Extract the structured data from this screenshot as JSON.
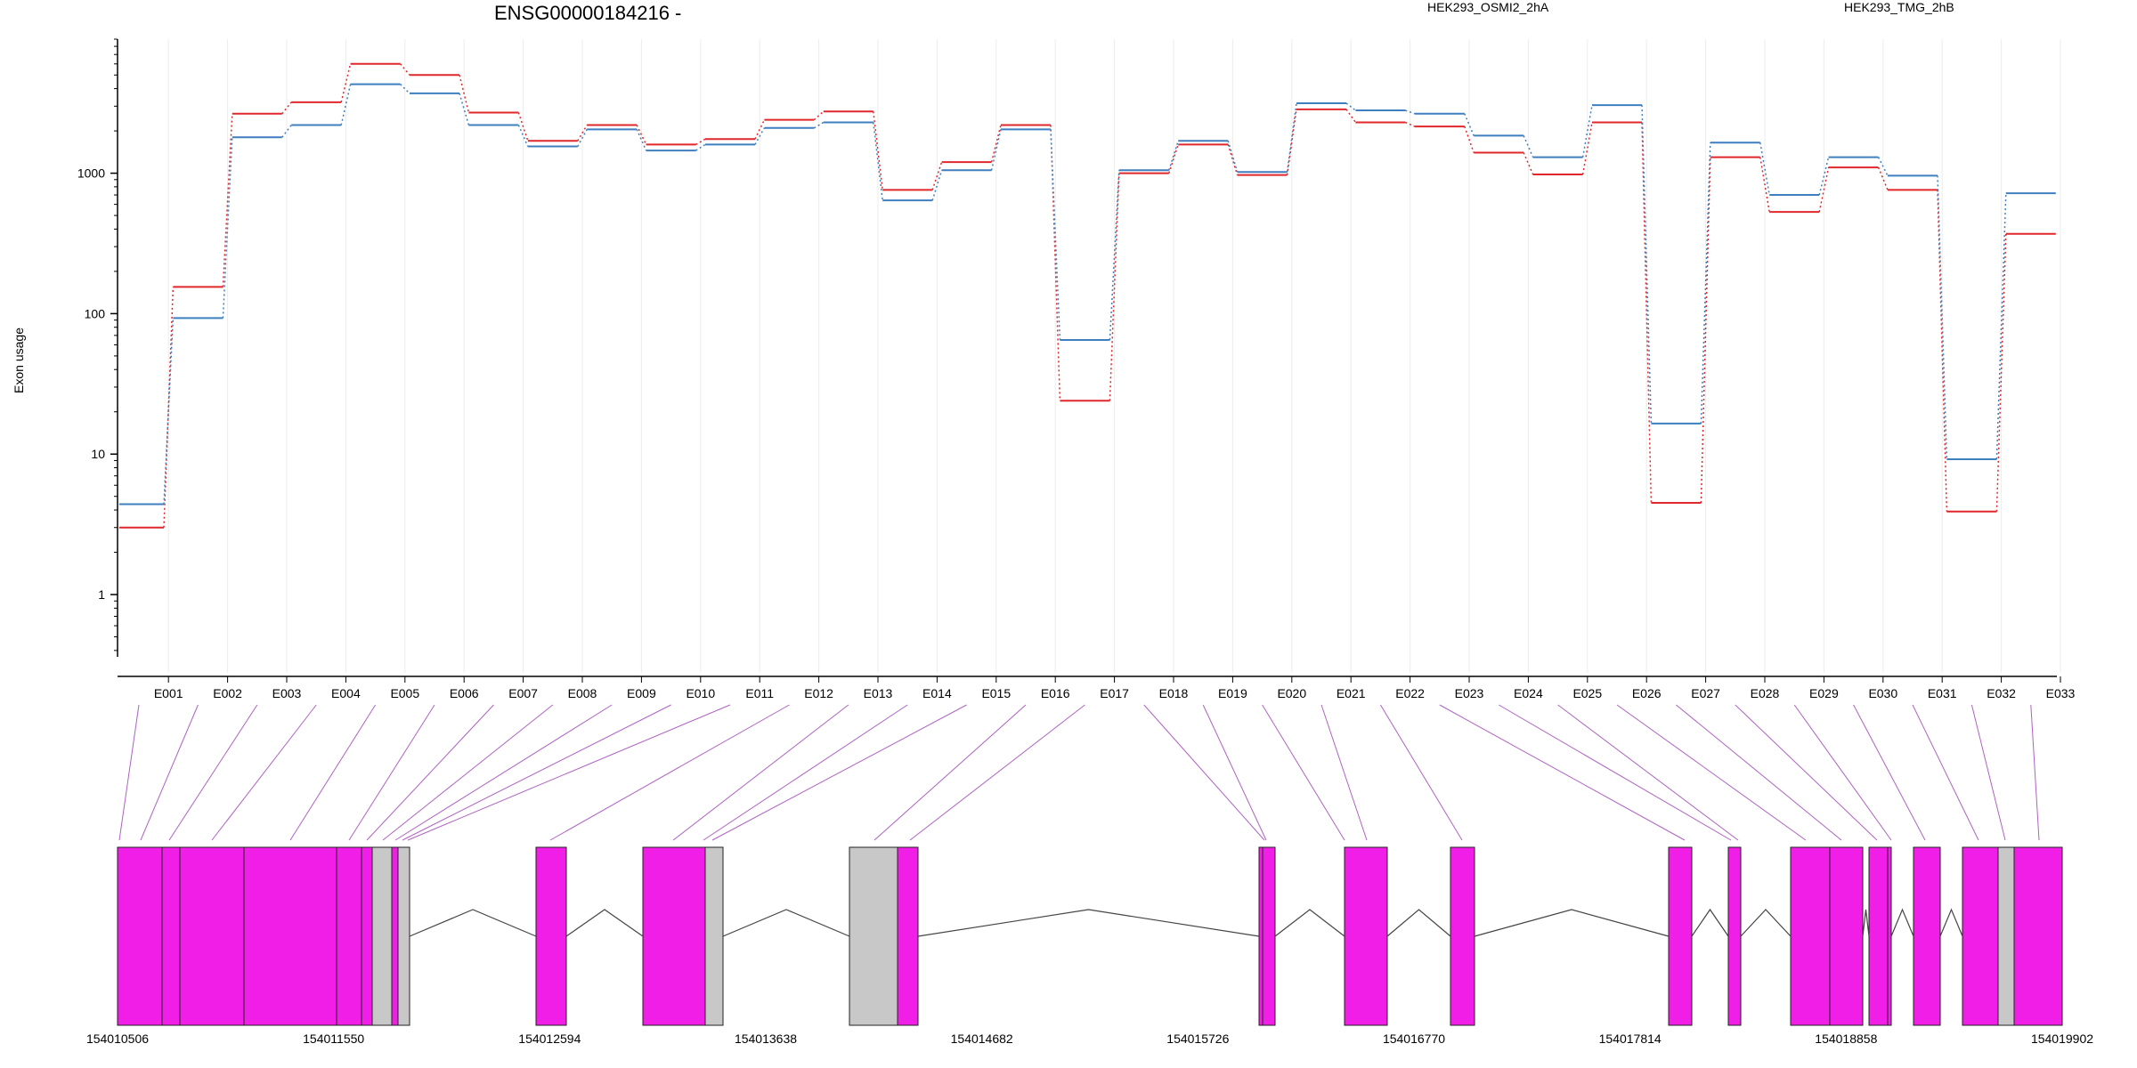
{
  "chart_data": {
    "type": "line",
    "title": "ENSG00000184216 -",
    "xlabel": "",
    "ylabel": "Exon usage",
    "y_scale": "log",
    "y_ticks": [
      1,
      10,
      100,
      1000
    ],
    "y_tick_labels": [
      "1",
      "10",
      "100",
      "1000"
    ],
    "ylim": [
      0.35,
      9000
    ],
    "categories": [
      "E001",
      "E002",
      "E003",
      "E004",
      "E005",
      "E006",
      "E007",
      "E008",
      "E009",
      "E010",
      "E011",
      "E012",
      "E013",
      "E014",
      "E015",
      "E016",
      "E017",
      "E018",
      "E019",
      "E020",
      "E021",
      "E022",
      "E023",
      "E024",
      "E025",
      "E026",
      "E027",
      "E028",
      "E029",
      "E030",
      "E031",
      "E032",
      "E033"
    ],
    "legend_position": "top",
    "grid": "vertical, light",
    "series": [
      {
        "name": "HEK293_OSMI2_2hA",
        "color": "#e0272b",
        "values": [
          3,
          155,
          2650,
          3200,
          6000,
          5000,
          2700,
          1700,
          2200,
          1600,
          1750,
          2400,
          2750,
          760,
          1200,
          2200,
          24,
          1000,
          1600,
          970,
          2850,
          2300,
          2150,
          1400,
          980,
          2300,
          4.5,
          1300,
          530,
          1100,
          760,
          3.9,
          370
        ]
      },
      {
        "name": "HEK293_TMG_2hB",
        "color": "#3f7fbf",
        "values": [
          4.4,
          93,
          1800,
          2200,
          4300,
          3700,
          2200,
          1550,
          2050,
          1450,
          1600,
          2100,
          2300,
          640,
          1050,
          2050,
          65,
          1050,
          1700,
          1020,
          3150,
          2800,
          2650,
          1850,
          1300,
          3050,
          16.5,
          1650,
          700,
          1300,
          960,
          9.2,
          720
        ]
      }
    ]
  },
  "gene_model": {
    "coordinates": [
      "154010506",
      "154011550",
      "154012594",
      "154013638",
      "154014682",
      "154015726",
      "154016770",
      "154017814",
      "154018858",
      "154019902"
    ],
    "colors": {
      "exon_tested": "#f01ee6",
      "exon_other": "#c8c8c8",
      "connector": "#9b3bb3"
    }
  }
}
